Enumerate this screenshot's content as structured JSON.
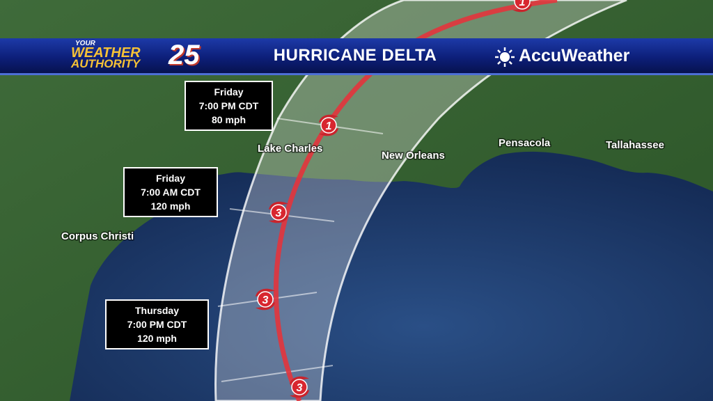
{
  "header": {
    "logo_small": "YOUR",
    "logo_main": "WEATHER",
    "logo_sub": "AUTHORITY",
    "logo_number": "25",
    "title": "HURRICANE DELTA",
    "brand": "AccuWeather"
  },
  "cities": [
    "Lake Charles",
    "New Orleans",
    "Pensacola",
    "Tallahassee",
    "Corpus Christi"
  ],
  "track_icons": [
    "1",
    "1",
    "3",
    "3",
    "3"
  ],
  "forecast_boxes": [
    {
      "day": "Friday",
      "time": "7:00 PM CDT",
      "wind": "80 mph"
    },
    {
      "day": "Friday",
      "time": "7:00 AM CDT",
      "wind": "120 mph"
    },
    {
      "day": "Thursday",
      "time": "7:00 PM CDT",
      "wind": "120 mph"
    }
  ]
}
